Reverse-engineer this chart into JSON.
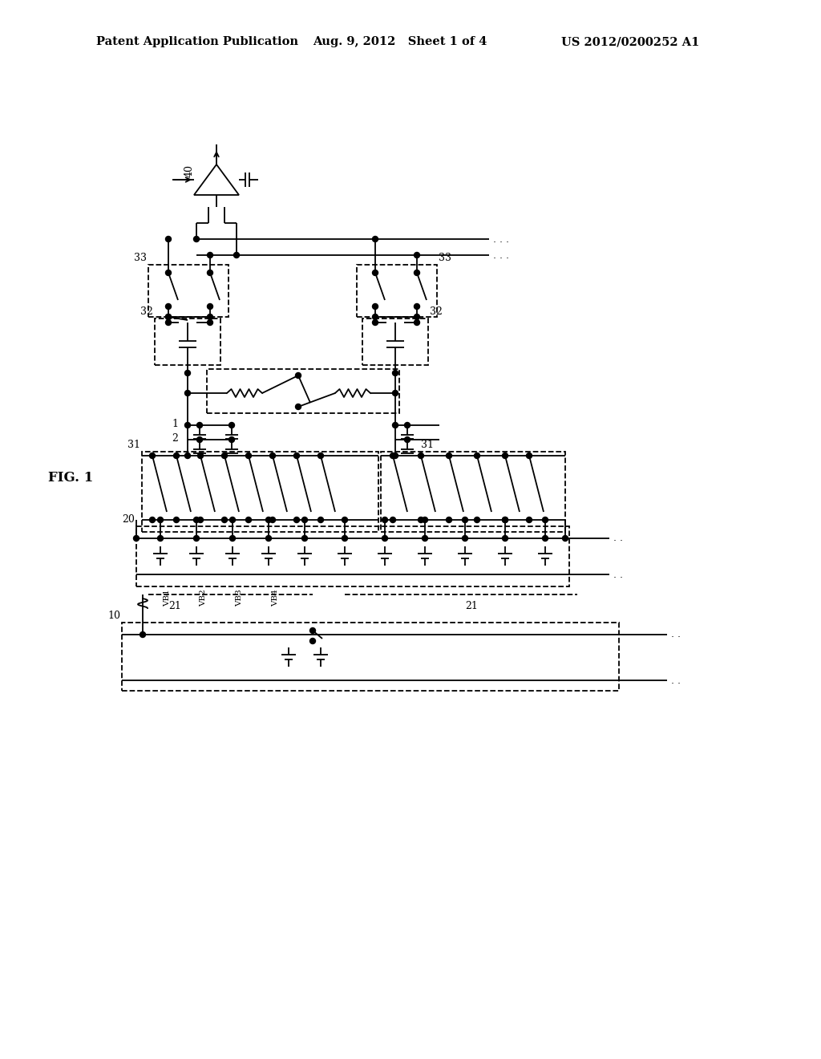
{
  "header_left": "Patent Application Publication",
  "header_center": "Aug. 9, 2012   Sheet 1 of 4",
  "header_right": "US 2012/0200252 A1",
  "fig_label": "FIG. 1",
  "bg_color": "#ffffff",
  "lc": "#000000",
  "lw": 1.3
}
